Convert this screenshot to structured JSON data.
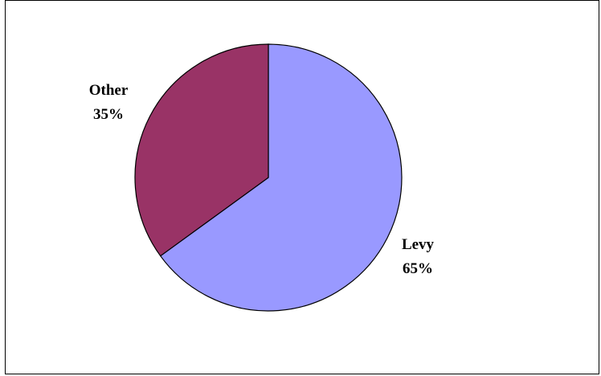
{
  "chart_data": {
    "type": "pie",
    "title": "",
    "slices": [
      {
        "label": "Levy",
        "value": 65,
        "percent_label": "65%",
        "color": "#9999ff"
      },
      {
        "label": "Other",
        "value": 35,
        "percent_label": "35%",
        "color": "#993366"
      }
    ],
    "start_angle": "12 o'clock",
    "direction": "clockwise",
    "legend": "none",
    "border_color": "#000000"
  }
}
